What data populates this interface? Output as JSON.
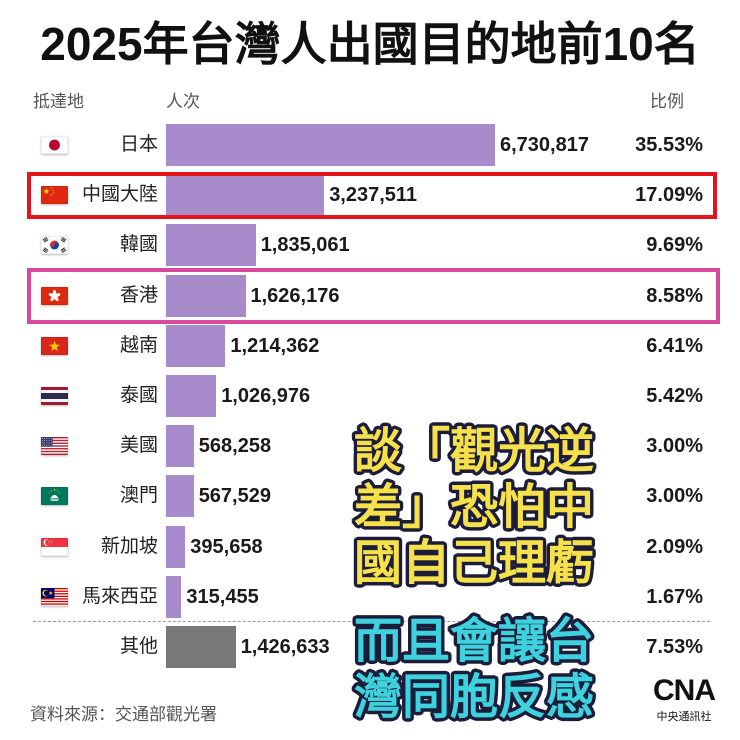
{
  "chart_data": {
    "type": "bar",
    "title": "2025年台灣人出國目的地前10名",
    "column_headers": {
      "destination": "抵達地",
      "count": "人次",
      "share": "比例"
    },
    "categories": [
      "日本",
      "中國大陸",
      "韓國",
      "香港",
      "越南",
      "泰國",
      "美國",
      "澳門",
      "新加坡",
      "馬來西亞",
      "其他"
    ],
    "values": [
      6730817,
      3237511,
      1835061,
      1626176,
      1214362,
      1026976,
      568258,
      567529,
      395658,
      315455,
      1426633
    ],
    "value_labels": [
      "6,730,817",
      "3,237,511",
      "1,835,061",
      "1,626,176",
      "1,214,362",
      "1,026,976",
      "568,258",
      "567,529",
      "395,658",
      "315,455",
      "1,426,633"
    ],
    "shares": [
      "35.53%",
      "17.09%",
      "9.69%",
      "8.58%",
      "6.41%",
      "5.42%",
      "3.00%",
      "3.00%",
      "2.09%",
      "1.67%",
      "7.53%"
    ],
    "flags": [
      "japan-flag",
      "china-flag",
      "south-korea-flag",
      "hong-kong-flag",
      "vietnam-flag",
      "thailand-flag",
      "usa-flag",
      "macau-flag",
      "singapore-flag",
      "malaysia-flag",
      null
    ],
    "bar_colors": [
      "#a78bca",
      "#a78bca",
      "#a78bca",
      "#a78bca",
      "#a78bca",
      "#a78bca",
      "#a78bca",
      "#a78bca",
      "#a78bca",
      "#a78bca",
      "#787878"
    ]
  },
  "source": "資料來源：交通部觀光署",
  "highlight_colors": {
    "china_row": "#e5141c",
    "hong_kong_row": "#d8489c"
  },
  "overlay": {
    "caption_1": {
      "lines": [
        "談「觀光逆",
        "差」恐怕中",
        "國自己理虧"
      ],
      "color": "#f6e14b"
    },
    "caption_2": {
      "lines": [
        "而且會讓台",
        "灣同胞反感"
      ],
      "color": "#3ed2df"
    },
    "outline_color": "#1c1d3a"
  },
  "logo": {
    "mark": "CNA",
    "name": "中央通訊社"
  }
}
